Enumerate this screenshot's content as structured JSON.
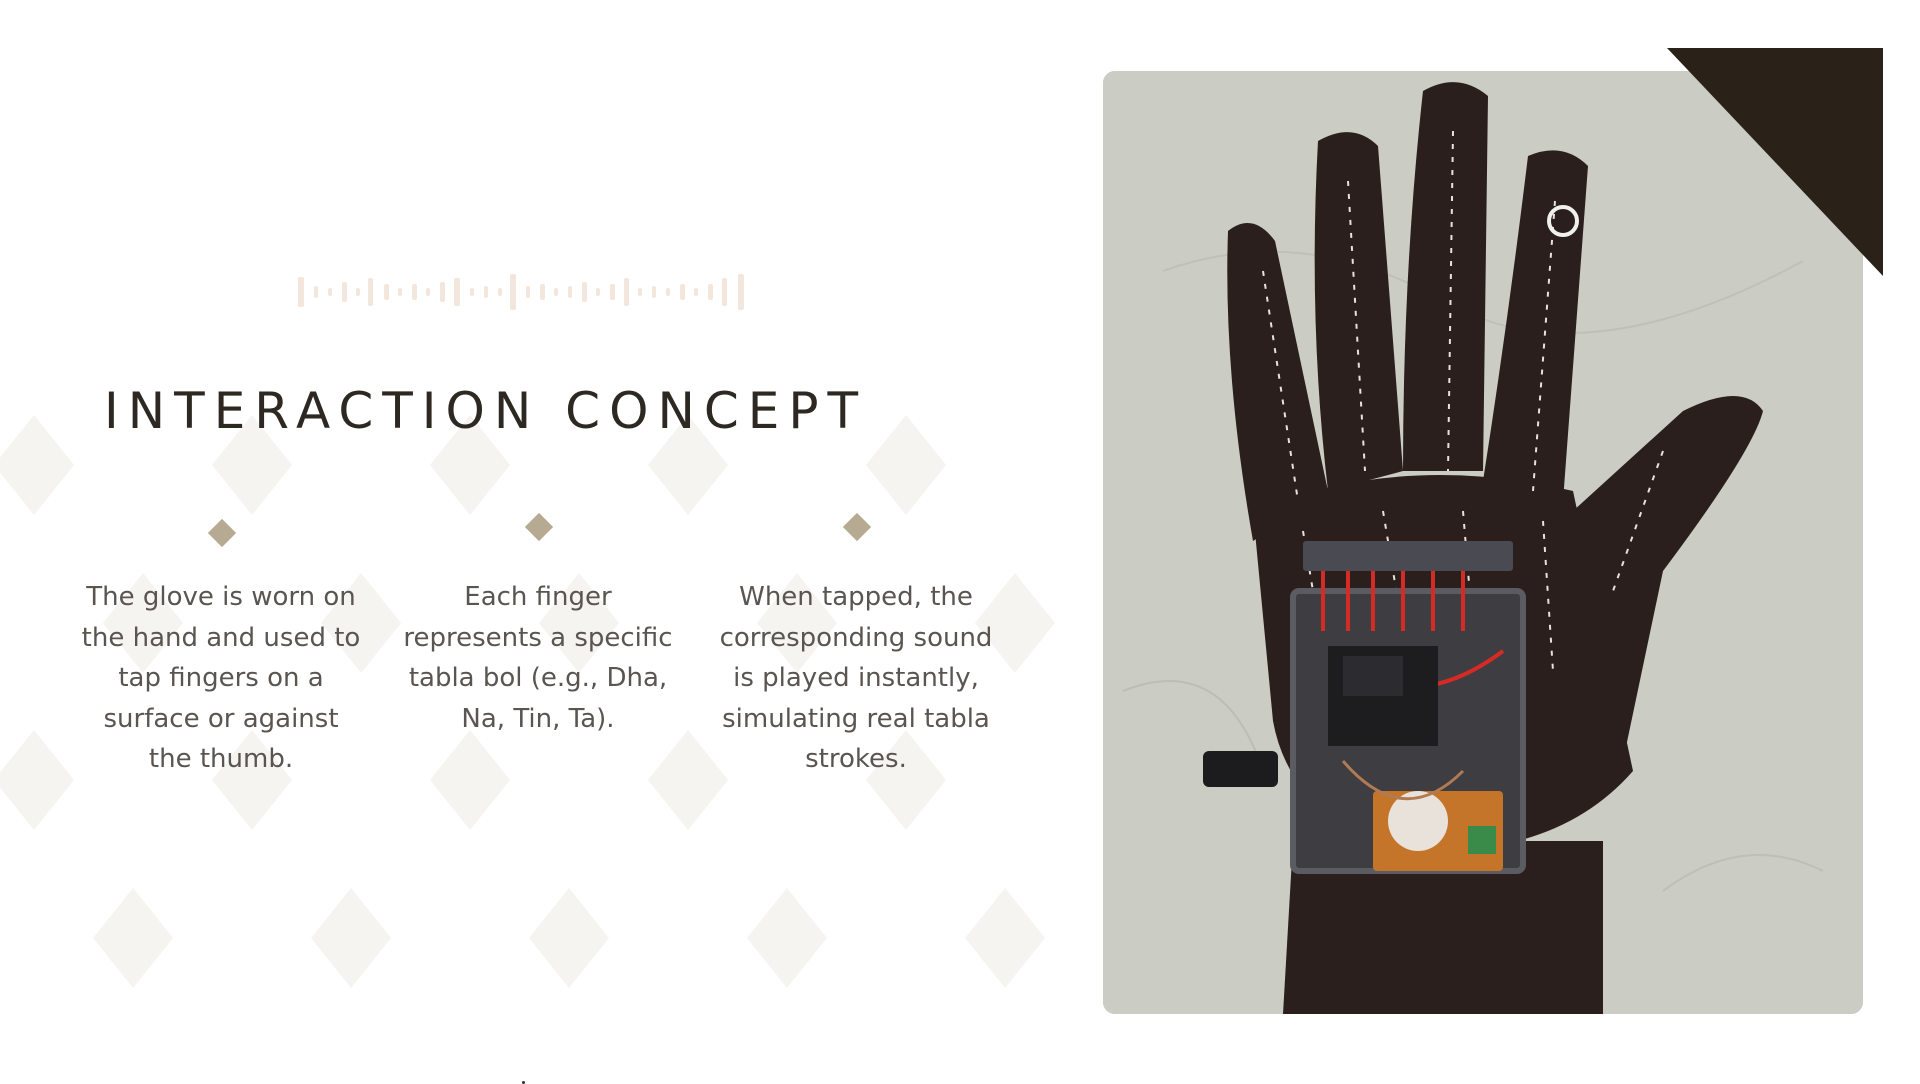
{
  "slide": {
    "title": "INTERACTION CONCEPT",
    "points": [
      "The glove is worn on the hand and used to tap fingers on a surface or against the thumb.",
      "Each finger represents a specific tabla bol (e.g., Dha, Na, Tin, Ta).",
      "When tapped, the corresponding sound is played instantly, simulating real tabla strokes."
    ]
  },
  "colors": {
    "title": "#2d2822",
    "body_text": "#5a5550",
    "bullet_diamond": "#b6aa93",
    "corner_accent": "#2a2218",
    "wave_accent": "#f3e6dc",
    "background_diamonds": "#f6f4f1"
  },
  "icons": {
    "bullet": "diamond-bullet-icon",
    "header_decoration": "soundwave-icon"
  }
}
